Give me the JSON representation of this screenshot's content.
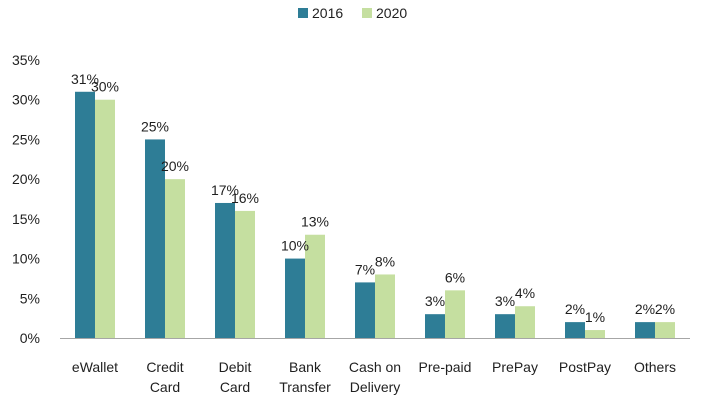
{
  "chart_data": {
    "type": "bar",
    "categories": [
      [
        "eWallet"
      ],
      [
        "Credit",
        "Card"
      ],
      [
        "Debit",
        "Card"
      ],
      [
        "Bank",
        "Transfer"
      ],
      [
        "Cash on",
        "Delivery"
      ],
      [
        "Pre-paid"
      ],
      [
        "PrePay"
      ],
      [
        "PostPay"
      ],
      [
        "Others"
      ]
    ],
    "series": [
      {
        "name": "2016",
        "color": "#2e7d96",
        "values": [
          31,
          25,
          17,
          10,
          7,
          3,
          3,
          2,
          2
        ],
        "labels": [
          "31%",
          "25%",
          "17%",
          "10%",
          "7%",
          "3%",
          "3%",
          "2%",
          "2%"
        ]
      },
      {
        "name": "2020",
        "color": "#c5dfa0",
        "values": [
          30,
          20,
          16,
          13,
          8,
          6,
          4,
          1,
          2
        ],
        "labels": [
          "30%",
          "20%",
          "16%",
          "13%",
          "8%",
          "6%",
          "4%",
          "1%",
          "2%"
        ]
      }
    ],
    "ylim": [
      0,
      35
    ],
    "yticks": [
      0,
      5,
      10,
      15,
      20,
      25,
      30,
      35
    ],
    "ytick_labels": [
      "0%",
      "5%",
      "10%",
      "15%",
      "20%",
      "25%",
      "30%",
      "35%"
    ],
    "legend_position": "top-center",
    "grid": false,
    "title": "",
    "xlabel": "",
    "ylabel": ""
  }
}
